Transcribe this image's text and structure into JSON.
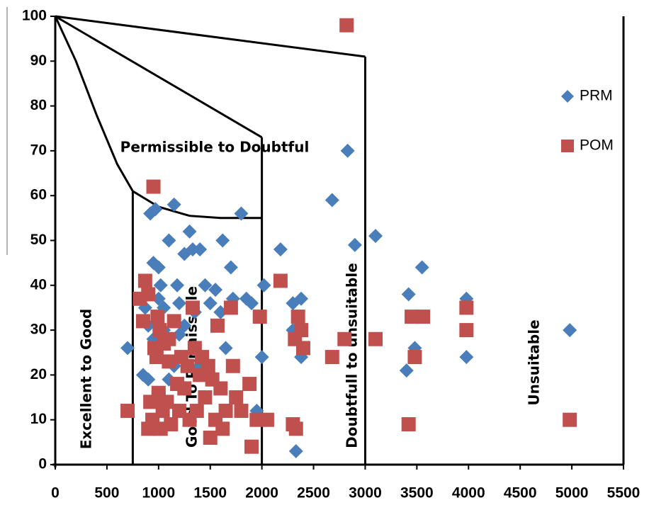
{
  "chart_data": {
    "type": "scatter",
    "xlim": [
      0,
      5500
    ],
    "ylim": [
      0,
      100
    ],
    "x_ticks": [
      "0",
      "500",
      "1000",
      "1500",
      "2000",
      "2500",
      "3000",
      "3500",
      "4000",
      "4500",
      "5000",
      "5500"
    ],
    "y_ticks": [
      "0",
      "10",
      "20",
      "30",
      "40",
      "50",
      "60",
      "70",
      "80",
      "90",
      "100"
    ],
    "grid": false,
    "legend_position": "top-right",
    "series": [
      {
        "name": "PRM",
        "marker": "diamond",
        "color": "#4A7EBB",
        "points": [
          [
            700,
            26
          ],
          [
            850,
            20
          ],
          [
            870,
            35
          ],
          [
            900,
            31
          ],
          [
            920,
            56
          ],
          [
            950,
            45
          ],
          [
            970,
            57
          ],
          [
            1000,
            44
          ],
          [
            1020,
            40
          ],
          [
            1050,
            30
          ],
          [
            900,
            19
          ],
          [
            1000,
            28
          ],
          [
            1100,
            50
          ],
          [
            1150,
            58
          ],
          [
            1180,
            40
          ],
          [
            1200,
            36
          ],
          [
            1250,
            47
          ],
          [
            1300,
            52
          ],
          [
            1330,
            48
          ],
          [
            1400,
            48
          ],
          [
            1450,
            40
          ],
          [
            1500,
            36
          ],
          [
            1550,
            39
          ],
          [
            1600,
            34
          ],
          [
            1620,
            50
          ],
          [
            1650,
            26
          ],
          [
            1700,
            44
          ],
          [
            1720,
            37
          ],
          [
            1800,
            56
          ],
          [
            1850,
            37
          ],
          [
            1900,
            36
          ],
          [
            1950,
            12
          ],
          [
            2000,
            24
          ],
          [
            2020,
            40
          ],
          [
            2180,
            48
          ],
          [
            2300,
            36
          ],
          [
            2300,
            30
          ],
          [
            2330,
            3
          ],
          [
            2380,
            24
          ],
          [
            2380,
            37
          ],
          [
            2680,
            59
          ],
          [
            2830,
            70
          ],
          [
            2900,
            49
          ],
          [
            3100,
            51
          ],
          [
            3400,
            21
          ],
          [
            3420,
            38
          ],
          [
            3480,
            26
          ],
          [
            3550,
            44
          ],
          [
            3980,
            24
          ],
          [
            3980,
            37
          ],
          [
            4980,
            30
          ],
          [
            1050,
            35
          ],
          [
            1150,
            22
          ],
          [
            1250,
            31
          ],
          [
            1350,
            34
          ],
          [
            1100,
            19
          ],
          [
            1000,
            37
          ],
          [
            1200,
            29
          ],
          [
            1400,
            22
          ],
          [
            950,
            28
          ]
        ]
      },
      {
        "name": "POM",
        "marker": "square",
        "color": "#C0504D",
        "points": [
          [
            700,
            12
          ],
          [
            820,
            37
          ],
          [
            850,
            32
          ],
          [
            870,
            41
          ],
          [
            900,
            38
          ],
          [
            920,
            14
          ],
          [
            940,
            10
          ],
          [
            950,
            62
          ],
          [
            960,
            26
          ],
          [
            980,
            24
          ],
          [
            990,
            33
          ],
          [
            1000,
            16
          ],
          [
            1010,
            30
          ],
          [
            1020,
            8
          ],
          [
            1040,
            12
          ],
          [
            1050,
            27
          ],
          [
            1080,
            14
          ],
          [
            1100,
            23
          ],
          [
            1120,
            9
          ],
          [
            1150,
            32
          ],
          [
            1180,
            18
          ],
          [
            1200,
            12
          ],
          [
            1220,
            24
          ],
          [
            1250,
            17
          ],
          [
            1280,
            22
          ],
          [
            1300,
            10
          ],
          [
            1330,
            35
          ],
          [
            1350,
            26
          ],
          [
            1370,
            12
          ],
          [
            1400,
            20
          ],
          [
            1420,
            24
          ],
          [
            1450,
            15
          ],
          [
            1480,
            22
          ],
          [
            1500,
            6
          ],
          [
            1520,
            19
          ],
          [
            1550,
            10
          ],
          [
            1570,
            31
          ],
          [
            1600,
            17
          ],
          [
            1620,
            8
          ],
          [
            1650,
            12
          ],
          [
            1700,
            35
          ],
          [
            1720,
            22
          ],
          [
            1750,
            15
          ],
          [
            1800,
            12
          ],
          [
            1880,
            18
          ],
          [
            1900,
            4
          ],
          [
            1950,
            10
          ],
          [
            1980,
            33
          ],
          [
            2050,
            10
          ],
          [
            2180,
            41
          ],
          [
            2300,
            9
          ],
          [
            2320,
            28
          ],
          [
            2330,
            8
          ],
          [
            2350,
            33
          ],
          [
            2380,
            30
          ],
          [
            2400,
            26
          ],
          [
            2680,
            24
          ],
          [
            2800,
            28
          ],
          [
            2820,
            98
          ],
          [
            3100,
            28
          ],
          [
            3420,
            9
          ],
          [
            3450,
            33
          ],
          [
            3480,
            24
          ],
          [
            3560,
            33
          ],
          [
            3980,
            30
          ],
          [
            3980,
            35
          ],
          [
            4980,
            10
          ],
          [
            900,
            8
          ],
          [
            1000,
            15
          ],
          [
            1100,
            28
          ]
        ]
      }
    ],
    "annotations": [
      {
        "text": "Permissible to Doubtful",
        "orientation": "horizontal"
      },
      {
        "text": "Excellent to Good",
        "orientation": "vertical"
      },
      {
        "text": "Good To Permissible",
        "orientation": "vertical"
      },
      {
        "text": "Doubtfull to unsuitable",
        "orientation": "vertical"
      },
      {
        "text": "Unsuitable",
        "orientation": "vertical"
      }
    ],
    "boundary_lines": [
      {
        "name": "excellent-good-boundary",
        "points": [
          [
            750,
            0
          ],
          [
            750,
            61
          ]
        ]
      },
      {
        "name": "good-permissible-boundary",
        "points": [
          [
            2000,
            0
          ],
          [
            2000,
            73
          ]
        ]
      },
      {
        "name": "doubtful-boundary",
        "points": [
          [
            3000,
            0
          ],
          [
            3000,
            91
          ]
        ]
      },
      {
        "name": "top-line",
        "points": [
          [
            0,
            100
          ],
          [
            3000,
            91
          ]
        ]
      },
      {
        "name": "middle-line",
        "points": [
          [
            0,
            100
          ],
          [
            2000,
            73
          ]
        ]
      },
      {
        "name": "lower-curve",
        "points": [
          [
            0,
            100
          ],
          [
            200,
            90
          ],
          [
            400,
            78
          ],
          [
            600,
            67
          ],
          [
            750,
            61
          ],
          [
            1000,
            57.5
          ],
          [
            1300,
            55.5
          ],
          [
            1600,
            55
          ],
          [
            2000,
            55
          ]
        ]
      }
    ]
  }
}
